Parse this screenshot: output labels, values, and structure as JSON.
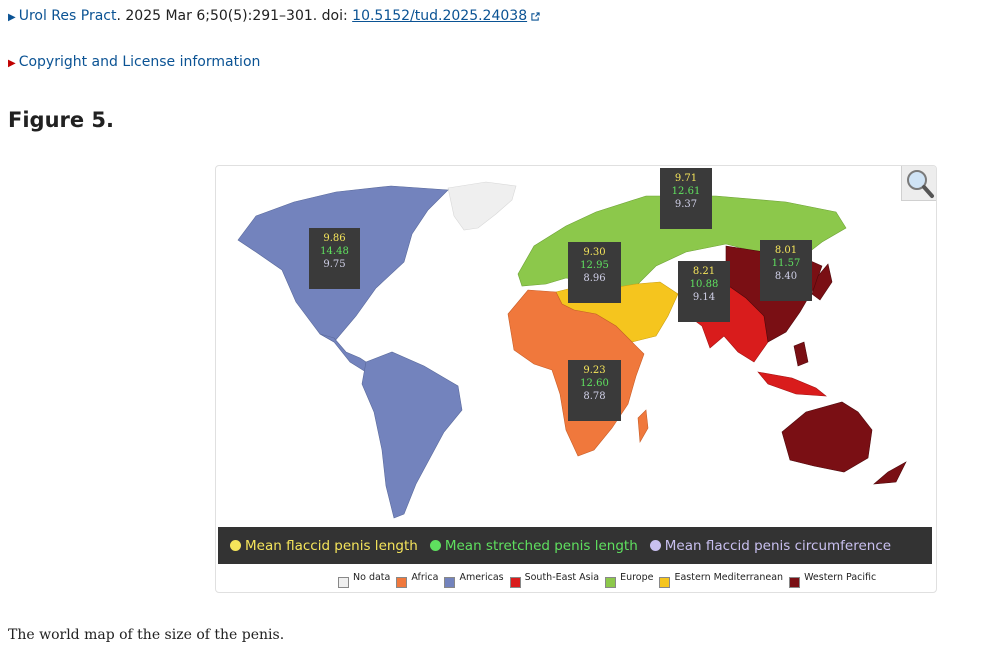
{
  "citation": {
    "journal": "Urol Res Pract",
    "details": ". 2025 Mar 6;50(5):291–301. doi: ",
    "doi": "10.5152/tud.2025.24038"
  },
  "copyright_label": "Copyright and License information",
  "figure_title": "Figure 5.",
  "icons": {
    "citation_expand": "triangle-right-icon",
    "external": "external-link-icon",
    "zoom": "magnifier-icon"
  },
  "stat_boxes": [
    {
      "region": "Americas",
      "flaccid": "9.86",
      "stretched": "14.48",
      "circumference": "9.75"
    },
    {
      "region": "Europe",
      "flaccid": "9.71",
      "stretched": "12.61",
      "circumference": "9.37"
    },
    {
      "region": "Eastern Mediterranean",
      "flaccid": "9.30",
      "stretched": "12.95",
      "circumference": "8.96"
    },
    {
      "region": "South-East Asia",
      "flaccid": "8.21",
      "stretched": "10.88",
      "circumference": "9.14"
    },
    {
      "region": "Western Pacific",
      "flaccid": "8.01",
      "stretched": "11.57",
      "circumference": "8.40"
    },
    {
      "region": "Africa",
      "flaccid": "9.23",
      "stretched": "12.60",
      "circumference": "8.78"
    }
  ],
  "measure_legend": [
    {
      "label": "Mean flaccid penis length",
      "color": "#f5e55b"
    },
    {
      "label": "Mean stretched penis length",
      "color": "#5fe05f"
    },
    {
      "label": "Mean flaccid penis circumference",
      "color": "#c9c0f0"
    }
  ],
  "region_legend": [
    {
      "label": "No data",
      "color": "#efefef"
    },
    {
      "label": "Africa",
      "color": "#f0783c"
    },
    {
      "label": "Americas",
      "color": "#7383bd"
    },
    {
      "label": "South-East Asia",
      "color": "#d91c1c"
    },
    {
      "label": "Europe",
      "color": "#8cc84b"
    },
    {
      "label": "Eastern Mediterranean",
      "color": "#f5c51e"
    },
    {
      "label": "Western Pacific",
      "color": "#7a0f14"
    }
  ],
  "caption": "The world map of the size of the penis."
}
